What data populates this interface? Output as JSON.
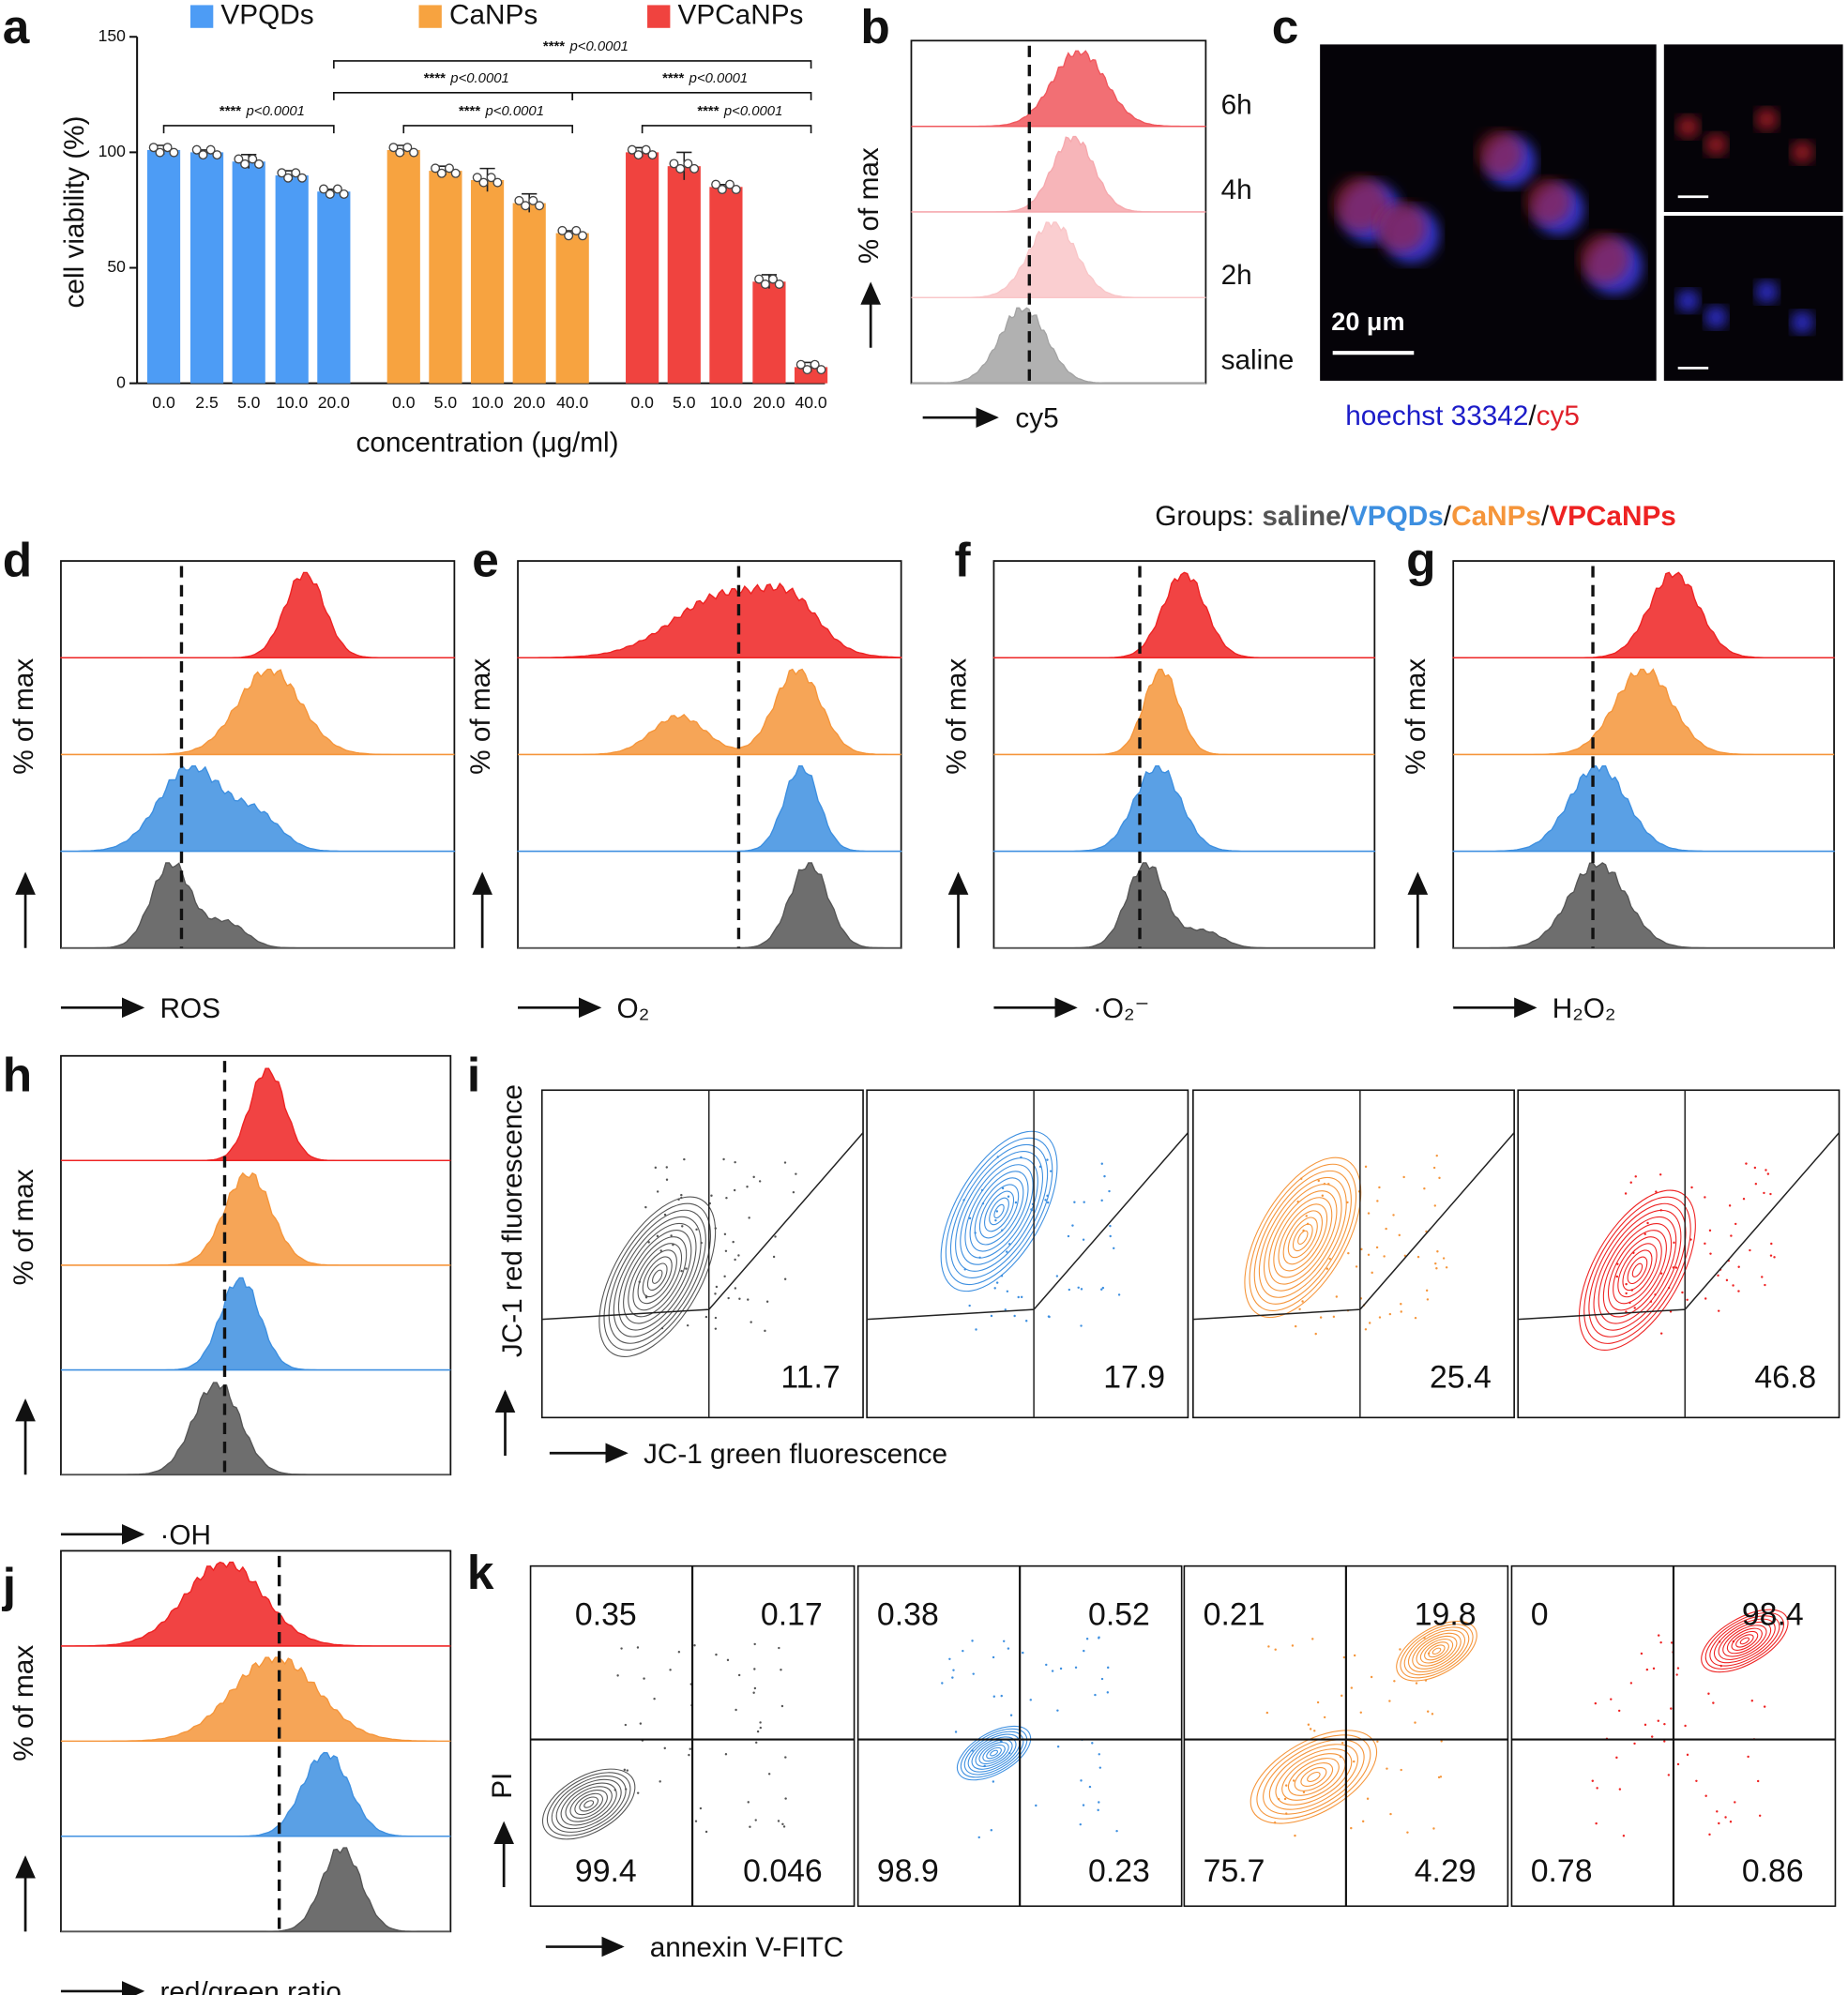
{
  "chart_data": {
    "type": "bar",
    "ylabel": "cell viability (%)",
    "xlabel": "concentration (μg/ml)",
    "ylim": [
      0,
      150
    ],
    "yticks": [
      0,
      50,
      100,
      150
    ],
    "series": [
      {
        "name": "VPQDs",
        "color": "#4d9cf5",
        "categories": [
          "0.0",
          "2.5",
          "5.0",
          "10.0",
          "20.0"
        ],
        "values": [
          101,
          100,
          96,
          90,
          83
        ],
        "errors": [
          2,
          1,
          3,
          2,
          1
        ]
      },
      {
        "name": "CaNPs",
        "color": "#f7a340",
        "categories": [
          "0.0",
          "5.0",
          "10.0",
          "20.0",
          "40.0"
        ],
        "values": [
          101,
          92,
          88,
          78,
          65
        ],
        "errors": [
          2,
          2,
          5,
          4,
          1
        ]
      },
      {
        "name": "VPCaNPs",
        "color": "#f0433f",
        "categories": [
          "0.0",
          "5.0",
          "10.0",
          "20.0",
          "40.0"
        ],
        "values": [
          100,
          94,
          85,
          44,
          7
        ],
        "errors": [
          2,
          6,
          1,
          3,
          2
        ]
      }
    ],
    "annotations": [
      {
        "stars": "****",
        "p": "p<0.0001"
      },
      {
        "stars": "****",
        "p": "p<0.0001"
      },
      {
        "stars": "****",
        "p": "p<0.0001"
      },
      {
        "stars": "****",
        "p": "p<0.0001"
      },
      {
        "stars": "****",
        "p": "p<0.0001"
      },
      {
        "stars": "****",
        "p": "p<0.0001"
      }
    ]
  },
  "panel_letters": [
    "a",
    "b",
    "c",
    "d",
    "e",
    "f",
    "g",
    "h",
    "i",
    "j",
    "k"
  ],
  "uptake": {
    "ylabel": "% of max",
    "xlabel": "cy5",
    "rows": [
      {
        "name": "6h",
        "color": "#f0565c"
      },
      {
        "name": "4h",
        "color": "#f6a8ad"
      },
      {
        "name": "2h",
        "color": "#f9c6c8"
      },
      {
        "name": "saline",
        "color": "#a3a3a3"
      }
    ]
  },
  "imaging": {
    "scale_bar": "20 μm",
    "caption": [
      {
        "text": "hoechst 33342",
        "color": "#1c1cc8"
      },
      {
        "text": "/",
        "color": "#111111"
      },
      {
        "text": "cy5",
        "color": "#e0202a"
      }
    ]
  },
  "groups": {
    "label": "Groups:",
    "separator": "/",
    "items": [
      {
        "name": "saline",
        "color": "#555555"
      },
      {
        "name": "VPQDs",
        "color": "#3d8fe0"
      },
      {
        "name": "CaNPs",
        "color": "#f5953a"
      },
      {
        "name": "VPCaNPs",
        "color": "#ee2222"
      }
    ]
  },
  "histograms": [
    {
      "xlabel": "ROS",
      "ylabel": "% of max"
    },
    {
      "xlabel": "O₂",
      "ylabel": "% of max"
    },
    {
      "xlabel": "·O₂⁻",
      "ylabel": "% of max"
    },
    {
      "xlabel": "H₂O₂",
      "ylabel": "% of max"
    },
    {
      "xlabel": "·OH",
      "ylabel": "% of max"
    },
    {
      "xlabel": "red/green ratio",
      "ylabel": "% of max"
    }
  ],
  "jc1": {
    "ylabel": "JC-1 red fluorescence",
    "xlabel": "JC-1 green fluorescence",
    "values": [
      11.7,
      17.9,
      25.4,
      46.8
    ]
  },
  "apoptosis": {
    "ylabel": "PI",
    "xlabel": "annexin V-FITC",
    "quadrants": [
      [
        0.35,
        0.17,
        99.4,
        0.046
      ],
      [
        0.38,
        0.52,
        98.9,
        0.23
      ],
      [
        0.21,
        19.8,
        75.7,
        4.29
      ],
      [
        0,
        98.4,
        0.78,
        0.86
      ]
    ]
  }
}
